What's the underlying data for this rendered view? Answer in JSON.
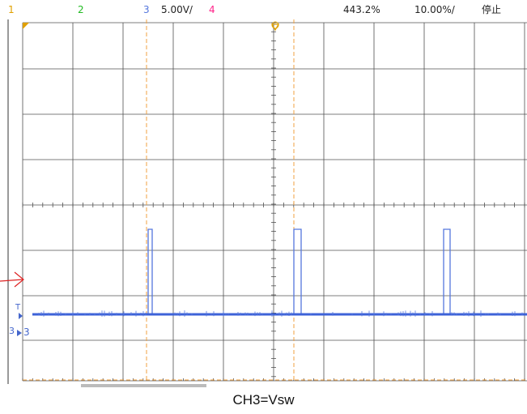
{
  "status_bar": {
    "channel1": "1",
    "channel2": "2",
    "channel3": "3",
    "channel3_scale": "5.00V/",
    "channel4": "4",
    "timebase": "443.2%",
    "trigger_level": "10.00%/",
    "run_state": "停止"
  },
  "channel_markers": {
    "trigger": "T",
    "channel3_ground": "3",
    "channel3_label": "3"
  },
  "caption": "CH3=Vsw",
  "colors": {
    "grid": "#505050",
    "channel1": "#e0a000",
    "channel2": "#22bb22",
    "channel3": "#5577dd",
    "channel4": "#ff2288",
    "cursor": "#f0a040",
    "pointer": "#dd2222"
  }
}
